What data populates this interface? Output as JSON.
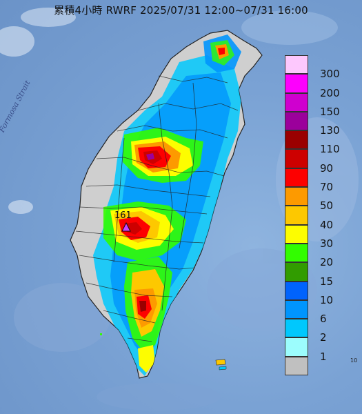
{
  "title": "累積4小時 RWRF 2025/07/31 12:00~07/31 16:00",
  "sea_label": "Formosa Strait",
  "max_marker": {
    "value": "161",
    "color": "#cc44ff"
  },
  "corner_text": "10",
  "legend": {
    "levels": [
      {
        "label": "300",
        "color": "#fdc8fd"
      },
      {
        "label": "200",
        "color": "#fd00fd"
      },
      {
        "label": "150",
        "color": "#cf00cf"
      },
      {
        "label": "130",
        "color": "#9b009b"
      },
      {
        "label": "110",
        "color": "#9a0000"
      },
      {
        "label": "90",
        "color": "#cd0000"
      },
      {
        "label": "70",
        "color": "#fd0000"
      },
      {
        "label": "50",
        "color": "#fd9a00"
      },
      {
        "label": "40",
        "color": "#fdc800"
      },
      {
        "label": "30",
        "color": "#fdfd00"
      },
      {
        "label": "20",
        "color": "#32fd00"
      },
      {
        "label": "15",
        "color": "#319c00"
      },
      {
        "label": "10",
        "color": "#0063fd"
      },
      {
        "label": "6",
        "color": "#0095fd"
      },
      {
        "label": "2",
        "color": "#00c8fd"
      },
      {
        "label": "1",
        "color": "#9cfdfd"
      },
      {
        "label": "",
        "color": "#c0c0c0"
      }
    ]
  }
}
